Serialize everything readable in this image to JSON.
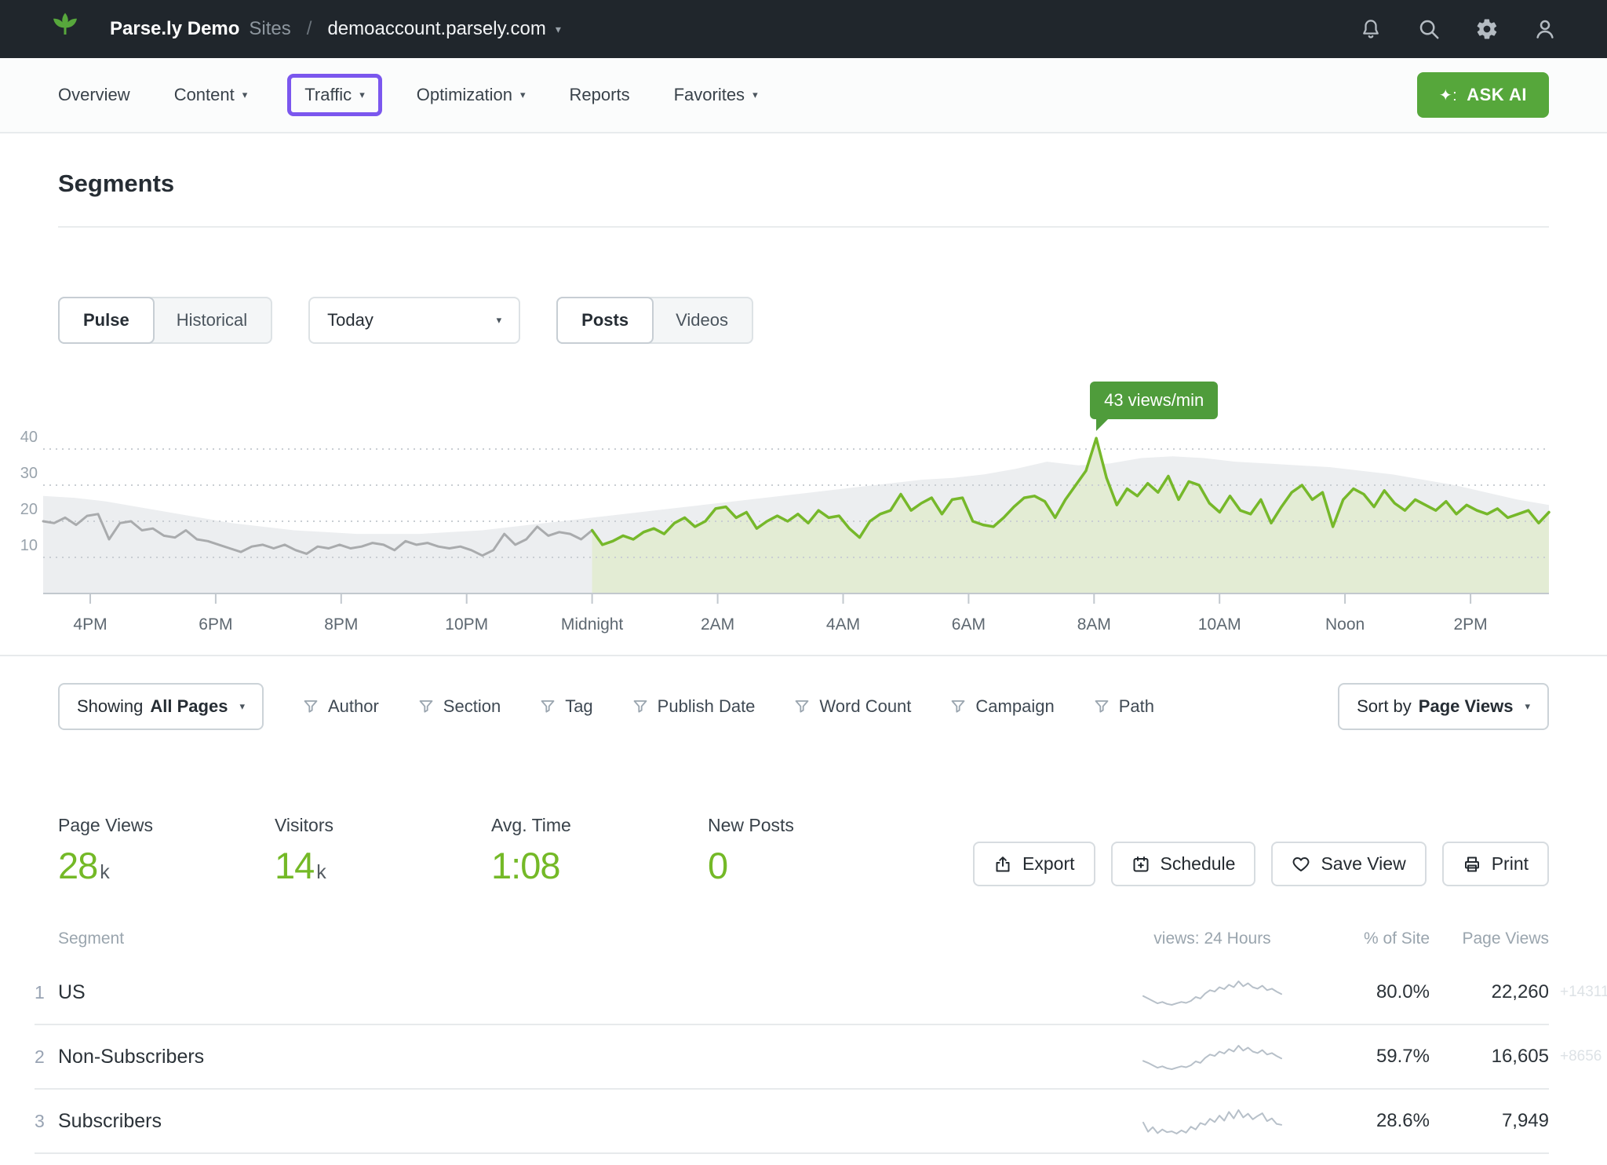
{
  "topbar": {
    "brand": "Parse.ly Demo",
    "sites_label": "Sites",
    "separator": "/",
    "site": "demoaccount.parsely.com"
  },
  "nav": {
    "items": [
      {
        "label": "Overview"
      },
      {
        "label": "Content"
      },
      {
        "label": "Traffic"
      },
      {
        "label": "Optimization"
      },
      {
        "label": "Reports"
      },
      {
        "label": "Favorites"
      }
    ],
    "ask_ai_label": "ASK AI",
    "ask_ai_spark": "✦:"
  },
  "page": {
    "title": "Segments"
  },
  "controls": {
    "mode_options": [
      "Pulse",
      "Historical"
    ],
    "mode_selected": "Pulse",
    "date_value": "Today",
    "type_options": [
      "Posts",
      "Videos"
    ],
    "type_selected": "Posts"
  },
  "chart_data": {
    "type": "line",
    "unit": "views/min",
    "ylim": [
      0,
      48
    ],
    "y_ticks": [
      10,
      20,
      30,
      40
    ],
    "grid": "dotted-horizontal",
    "x_ticks": [
      {
        "t": 45,
        "label": "4PM"
      },
      {
        "t": 165,
        "label": "6PM"
      },
      {
        "t": 285,
        "label": "8PM"
      },
      {
        "t": 405,
        "label": "10PM"
      },
      {
        "t": 525,
        "label": "Midnight"
      },
      {
        "t": 645,
        "label": "2AM"
      },
      {
        "t": 765,
        "label": "4AM"
      },
      {
        "t": 885,
        "label": "6AM"
      },
      {
        "t": 1005,
        "label": "8AM"
      },
      {
        "t": 1125,
        "label": "10AM"
      },
      {
        "t": 1245,
        "label": "Noon"
      },
      {
        "t": 1365,
        "label": "2PM"
      }
    ],
    "x_domain_minutes": [
      0,
      1440
    ],
    "tooltip": {
      "text": "43 views/min",
      "value": 43
    },
    "colors": {
      "band_fill": "#eceef0",
      "yesterday_line": "#a9abad",
      "today_line": "#76b82a",
      "today_fill": "#e3ecd4",
      "axis": "#c2c8ce",
      "grid": "#c9ced3"
    },
    "series": [
      {
        "name": "site-average-band",
        "kind": "area",
        "t_start": 0,
        "t_step": 30,
        "values": [
          27,
          26.5,
          25.5,
          24,
          22.5,
          21,
          19.5,
          18.5,
          17.5,
          17,
          16.5,
          16.5,
          16.5,
          17,
          17.5,
          18.5,
          19.5,
          20.5,
          21.5,
          22.5,
          23.5,
          24.5,
          25.5,
          26.5,
          27.5,
          28.5,
          29.5,
          30.5,
          31.5,
          32,
          33,
          34.5,
          36.5,
          35.5,
          36,
          37.5,
          38,
          37.5,
          36.5,
          36,
          35.5,
          35,
          34,
          33,
          31.5,
          30,
          28,
          26,
          24.5
        ]
      },
      {
        "name": "yesterday",
        "kind": "line",
        "t_start": 0,
        "t_end": 525,
        "values": [
          20,
          19.5,
          21,
          19,
          21.5,
          22,
          15,
          19.5,
          20,
          17.5,
          18,
          16,
          15.5,
          17.5,
          15,
          14.5,
          13.5,
          12.5,
          11.5,
          13,
          13.5,
          12.5,
          13.5,
          12,
          11,
          13,
          12.5,
          13.5,
          12.5,
          13,
          14,
          13.5,
          12,
          14.5,
          13.5,
          14,
          13,
          12.5,
          13,
          12,
          10.5,
          12,
          16.5,
          13.5,
          15,
          18.5,
          16,
          17,
          16.5,
          15,
          17.5
        ]
      },
      {
        "name": "today",
        "kind": "line-area",
        "t_start": 525,
        "t_end": 1440,
        "values": [
          17.5,
          13.5,
          14.5,
          16,
          15,
          17,
          18,
          16.5,
          19.5,
          21,
          18.5,
          20,
          23.5,
          24,
          21,
          22.5,
          18,
          20,
          21.5,
          20,
          22,
          19.5,
          23,
          21,
          21.5,
          18,
          15.5,
          20,
          22,
          23,
          27.5,
          23,
          25,
          26.5,
          22,
          26,
          26.5,
          20,
          19,
          18.5,
          21,
          24,
          26.5,
          27,
          25.5,
          21,
          26,
          30,
          34,
          43,
          32,
          24.5,
          29,
          27,
          30.5,
          28,
          32.5,
          26,
          31,
          30,
          25,
          22.5,
          27,
          23,
          22,
          26,
          19.5,
          24,
          28,
          30,
          26,
          28,
          18.5,
          26,
          29,
          27.5,
          24,
          28.5,
          25,
          23,
          26,
          24.5,
          23,
          25.5,
          22,
          24.5,
          23,
          22,
          23.5,
          21,
          22,
          23,
          19.5,
          22.5
        ]
      }
    ]
  },
  "filters": {
    "showing_prefix": "Showing",
    "showing_value": "All Pages",
    "items": [
      "Author",
      "Section",
      "Tag",
      "Publish Date",
      "Word Count",
      "Campaign",
      "Path"
    ],
    "sort_prefix": "Sort by",
    "sort_value": "Page Views"
  },
  "stats": [
    {
      "label": "Page Views",
      "value": "28",
      "suffix": "k"
    },
    {
      "label": "Visitors",
      "value": "14",
      "suffix": "k"
    },
    {
      "label": "Avg. Time",
      "value": "1:08",
      "suffix": ""
    },
    {
      "label": "New Posts",
      "value": "0",
      "suffix": ""
    }
  ],
  "actions": [
    {
      "label": "Export"
    },
    {
      "label": "Schedule"
    },
    {
      "label": "Save View"
    },
    {
      "label": "Print"
    }
  ],
  "table": {
    "headers": {
      "segment": "Segment",
      "views": "views: 24 Hours",
      "pct": "% of Site",
      "pv": "Page Views"
    },
    "rows": [
      {
        "rank": "1",
        "segment": "US",
        "pct": "80.0%",
        "page_views": "22,260",
        "delta": "+14311",
        "spark": [
          5,
          4.5,
          4,
          3.5,
          3.8,
          3.4,
          3.2,
          3.5,
          3.8,
          3.6,
          4,
          4.8,
          4.5,
          5.5,
          6.2,
          5.9,
          6.8,
          6.4,
          7.3,
          6.8,
          8,
          7,
          7.6,
          6.8,
          6.5,
          7.1,
          6.2,
          6.5,
          5.9,
          5.4
        ]
      },
      {
        "rank": "2",
        "segment": "Non-Subscribers",
        "pct": "59.7%",
        "page_views": "16,605",
        "delta": "+8656",
        "spark": [
          5,
          4.6,
          4.1,
          3.6,
          3.9,
          3.5,
          3.3,
          3.6,
          3.9,
          3.7,
          4.1,
          4.9,
          4.6,
          5.6,
          6.3,
          6,
          6.9,
          6.5,
          7.4,
          6.9,
          8.1,
          7.1,
          7.7,
          6.9,
          6.6,
          7.2,
          6.3,
          6.6,
          6,
          5.5
        ]
      },
      {
        "rank": "3",
        "segment": "Subscribers",
        "pct": "28.6%",
        "page_views": "7,949",
        "delta": "",
        "spark": [
          5.5,
          3.5,
          4.5,
          3.2,
          4,
          3.4,
          3.6,
          3.1,
          3.8,
          3.3,
          4.6,
          4,
          5.4,
          5,
          6.3,
          5.6,
          7,
          5.9,
          7.8,
          6.4,
          8.2,
          6.6,
          7.4,
          6.2,
          6.9,
          7.5,
          5.8,
          6.4,
          5.2,
          5
        ]
      }
    ]
  },
  "colors": {
    "accent_green": "#74b927",
    "brand_green": "#56a73b",
    "header_bg": "#20262c",
    "highlight_purple": "#7b57ee"
  }
}
